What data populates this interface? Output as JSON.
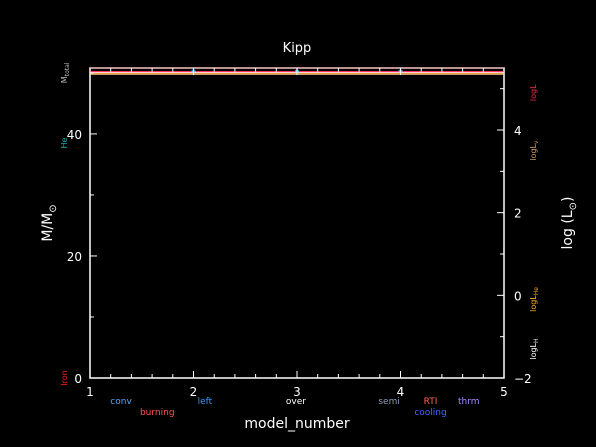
{
  "chart_data": {
    "type": "line",
    "title": "Kipp",
    "xlabel": "model_number",
    "ylabel_left": "M/M",
    "ylabel_left_sub": "⊙",
    "ylabel_right": "log (L",
    "ylabel_right_sub": "⊙",
    "ylabel_right_close": ")",
    "xlim": [
      1,
      5
    ],
    "ylim_left": [
      0,
      50.8
    ],
    "ylim_right": [
      -2,
      5.5
    ],
    "x_ticks": [
      1,
      2,
      3,
      4,
      5
    ],
    "x_tick_labels": [
      "1",
      "2",
      "3",
      "4",
      "5"
    ],
    "y_left_ticks": [
      0,
      20,
      40
    ],
    "y_left_tick_labels": [
      "0",
      "20",
      "40"
    ],
    "y_right_ticks": [
      -2,
      0,
      2,
      4
    ],
    "y_right_tick_labels": [
      "−2",
      "0",
      "2",
      "4"
    ],
    "series": [
      {
        "name": "M_total",
        "axis": "left",
        "color": "#cc9999",
        "x": [
          1,
          2,
          3,
          4,
          5
        ],
        "y": [
          50.8,
          50.8,
          50.8,
          50.8,
          50.8
        ]
      },
      {
        "name": "logL",
        "axis": "right",
        "color": "#ff3366",
        "x": [
          1,
          5
        ],
        "y": [
          5.41,
          5.41
        ]
      },
      {
        "name": "logL_H",
        "axis": "right",
        "color": "#ffffff",
        "x": [
          1,
          5
        ],
        "y": [
          5.38,
          5.38
        ]
      },
      {
        "name": "logL_He",
        "axis": "right",
        "color": "#ffaa22",
        "x": [
          1,
          5
        ],
        "y": [
          5.36,
          5.36
        ]
      },
      {
        "name": "logL_nu",
        "axis": "right",
        "color": "#cc9966",
        "x": [
          1,
          5
        ],
        "y": [
          5.35,
          5.35
        ]
      }
    ],
    "markers": {
      "color": "#55ccff",
      "x": [
        2,
        3,
        4
      ],
      "y_left": [
        50.3,
        50.3,
        50.3
      ]
    },
    "left_side_labels": [
      {
        "text": "M",
        "sub": "total",
        "color": "#bbbbbb",
        "y": 50
      },
      {
        "text": "He",
        "sub": "",
        "color": "#22aaaa",
        "y": 38.5
      },
      {
        "text": "Iron",
        "sub": "",
        "color": "#ff2222",
        "y": 0
      }
    ],
    "right_side_labels": [
      {
        "text": "logL",
        "sub": "",
        "color": "#ff2244",
        "y": 4.9
      },
      {
        "text": "logL",
        "sub": "ν",
        "color": "#cc9966",
        "y": 3.5
      },
      {
        "text": "logL",
        "sub": "He",
        "color": "#ffaa22",
        "y": -0.1
      },
      {
        "text": "logL",
        "sub": "H",
        "color": "#ffffff",
        "y": -1.3
      }
    ],
    "legend": [
      {
        "text": "conv",
        "color": "#55aaff",
        "row": 1,
        "x": 1.3
      },
      {
        "text": "burning",
        "color": "#ff5555",
        "row": 2,
        "x": 1.65
      },
      {
        "text": "left",
        "color": "#3399ff",
        "row": 1,
        "x": 2.11
      },
      {
        "text": "over",
        "color": "#ffffff",
        "row": 1,
        "x": 2.99
      },
      {
        "text": "semi",
        "color": "#8899bb",
        "row": 1,
        "x": 3.89
      },
      {
        "text": "RTI",
        "color": "#ff6655",
        "row": 1,
        "x": 4.29
      },
      {
        "text": "cooling",
        "color": "#4466ff",
        "row": 2,
        "x": 4.29
      },
      {
        "text": "thrm",
        "color": "#aa88ff",
        "row": 1,
        "x": 4.66
      }
    ],
    "grid": false
  }
}
